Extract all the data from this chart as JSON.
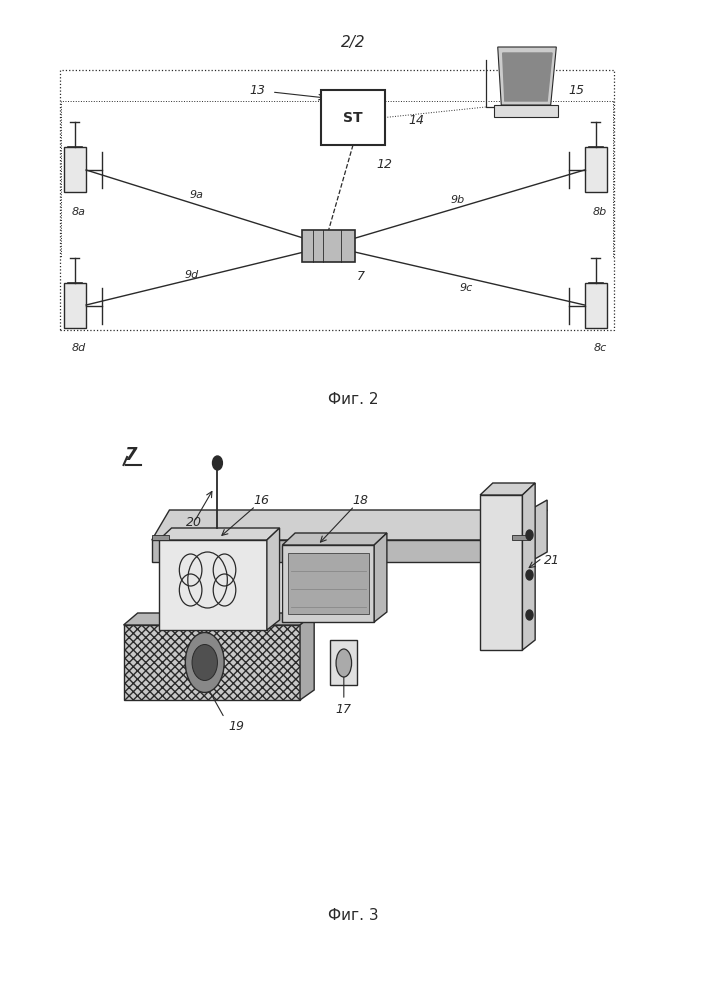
{
  "fig_width": 7.06,
  "fig_height": 10.0,
  "dpi": 100,
  "bg_color": "#ffffff",
  "line_color": "#2a2a2a",
  "fig2_title": "2/2",
  "fig2_caption": "Фиг. 2",
  "fig3_caption": "Фиг. 3"
}
